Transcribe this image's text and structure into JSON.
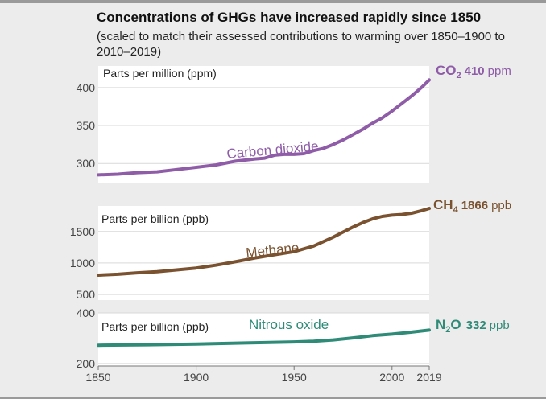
{
  "title": "Concentrations of GHGs have increased rapidly since 1850",
  "subtitle": "(scaled to match their assessed contributions to warming over 1850–1900 to 2010–2019)",
  "chart_data": [
    {
      "type": "line",
      "name": "Carbon dioxide",
      "series_label": "Carbon dioxide",
      "axis_label": "Parts per million (ppm)",
      "end_label": {
        "formula": "CO",
        "subscript": "2",
        "value": "410",
        "unit": "ppm"
      },
      "color": "#8f5ca8",
      "yticks": [
        300,
        350,
        400
      ],
      "ylim": [
        278,
        420
      ],
      "x": [
        1850,
        1860,
        1870,
        1880,
        1890,
        1900,
        1910,
        1920,
        1930,
        1935,
        1940,
        1945,
        1950,
        1955,
        1960,
        1965,
        1970,
        1975,
        1980,
        1985,
        1990,
        1995,
        2000,
        2005,
        2010,
        2015,
        2019
      ],
      "values": [
        285,
        286,
        288,
        289,
        292,
        295,
        298,
        303,
        306,
        307,
        311,
        312,
        312,
        313,
        317,
        320,
        325,
        331,
        338,
        345,
        353,
        360,
        369,
        379,
        389,
        400,
        410
      ]
    },
    {
      "type": "line",
      "name": "Methane",
      "series_label": "Methane",
      "axis_label": "Parts per billion (ppb)",
      "end_label": {
        "formula": "CH",
        "subscript": "4",
        "value": "1866",
        "unit": "ppb"
      },
      "color": "#7a5230",
      "yticks": [
        500,
        1000,
        1500
      ],
      "ylim": [
        450,
        1880
      ],
      "x": [
        1850,
        1860,
        1870,
        1880,
        1890,
        1900,
        1910,
        1920,
        1930,
        1940,
        1950,
        1960,
        1970,
        1975,
        1980,
        1985,
        1990,
        1995,
        2000,
        2005,
        2010,
        2015,
        2019
      ],
      "values": [
        808,
        822,
        845,
        862,
        890,
        920,
        965,
        1020,
        1080,
        1130,
        1180,
        1270,
        1410,
        1490,
        1570,
        1640,
        1700,
        1740,
        1760,
        1770,
        1790,
        1830,
        1866
      ]
    },
    {
      "type": "line",
      "name": "Nitrous oxide",
      "series_label": "Nitrous oxide",
      "axis_label": "Parts per billion (ppb)",
      "end_label": {
        "formula": "N",
        "subscript": "2",
        "value": "332",
        "unit": "ppb",
        "suffix": "O"
      },
      "color": "#2e8b77",
      "yticks": [
        200,
        400
      ],
      "ylim": [
        190,
        400
      ],
      "x": [
        1850,
        1875,
        1900,
        1925,
        1950,
        1960,
        1970,
        1980,
        1990,
        2000,
        2010,
        2019
      ],
      "values": [
        272,
        274,
        277,
        281,
        285,
        288,
        293,
        301,
        310,
        316,
        324,
        332
      ]
    }
  ],
  "x_axis": {
    "ticks": [
      "1850",
      "1900",
      "1950",
      "2000",
      "2019"
    ],
    "tick_values": [
      1850,
      1900,
      1950,
      2000,
      2019
    ],
    "xlim": [
      1850,
      2019
    ]
  }
}
